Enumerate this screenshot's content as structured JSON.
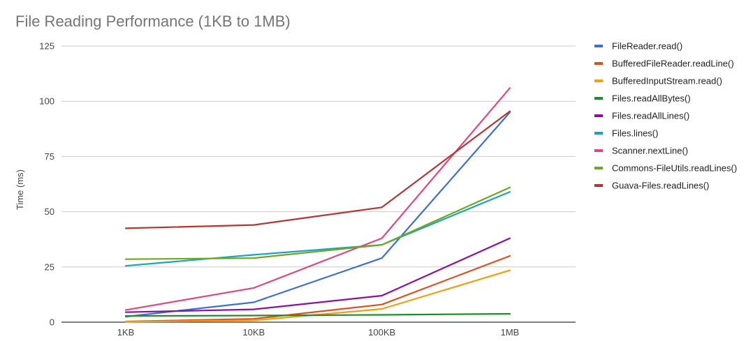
{
  "chart_data": {
    "type": "line",
    "title": "File Reading Performance (1KB to 1MB)",
    "xlabel": "",
    "ylabel": "Time (ms)",
    "categories": [
      "1KB",
      "10KB",
      "100KB",
      "1MB"
    ],
    "ylim": [
      0,
      125
    ],
    "yticks": [
      0,
      25,
      50,
      75,
      100,
      125
    ],
    "grid": true,
    "legend_position": "right",
    "series": [
      {
        "name": "FileReader.read()",
        "color": "#3c6fd1",
        "values": [
          2.5,
          9,
          29,
          95
        ]
      },
      {
        "name": "BufferedFileReader.readLine()",
        "color": "#e0501c",
        "values": [
          0.3,
          1.5,
          8,
          30
        ]
      },
      {
        "name": "BufferedInputStream.read()",
        "color": "#f59c0f",
        "values": [
          0.2,
          0.8,
          6,
          23.5
        ]
      },
      {
        "name": "Files.readAllBytes()",
        "color": "#1f8f2e",
        "values": [
          2.8,
          3,
          3.3,
          3.8
        ]
      },
      {
        "name": "Files.readAllLines()",
        "color": "#8e0e9e",
        "values": [
          4.5,
          5.8,
          12,
          38
        ]
      },
      {
        "name": "Files.lines()",
        "color": "#1aa3c4",
        "values": [
          25.5,
          30.5,
          35,
          59
        ]
      },
      {
        "name": "Scanner.nextLine()",
        "color": "#e5467a",
        "values": [
          5.5,
          15.5,
          38,
          106
        ]
      },
      {
        "name": "Commons-FileUtils.readLines()",
        "color": "#6ea823",
        "values": [
          28.5,
          29,
          35,
          61
        ]
      },
      {
        "name": "Guava-Files.readLines()",
        "color": "#b83432",
        "values": [
          42.5,
          44,
          52,
          95.5
        ]
      }
    ]
  }
}
